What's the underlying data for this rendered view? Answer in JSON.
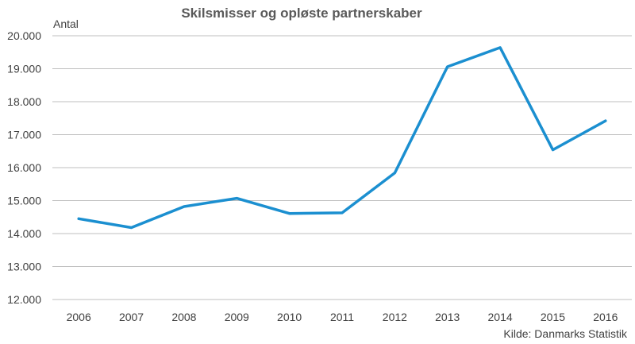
{
  "chart_data": {
    "type": "line",
    "title": "Skilsmisser og opløste partnerskaber",
    "ylabel": "Antal",
    "xlabel": "",
    "source": "Kilde:  Danmarks  Statistik",
    "categories": [
      "2006",
      "2007",
      "2008",
      "2009",
      "2010",
      "2011",
      "2012",
      "2013",
      "2014",
      "2015",
      "2016"
    ],
    "series": [
      {
        "values": [
          14450,
          14180,
          14820,
          15070,
          14610,
          14630,
          15840,
          19060,
          19640,
          16540,
          17420
        ],
        "color": "#1b8fd0"
      }
    ],
    "ylim": [
      12000,
      20000
    ],
    "yticks": [
      12000,
      13000,
      14000,
      15000,
      16000,
      17000,
      18000,
      19000,
      20000
    ],
    "ytick_labels": [
      "12.000",
      "13.000",
      "14.000",
      "15.000",
      "16.000",
      "17.000",
      "18.000",
      "19.000",
      "20.000"
    ],
    "grid": true,
    "legend": "none"
  }
}
